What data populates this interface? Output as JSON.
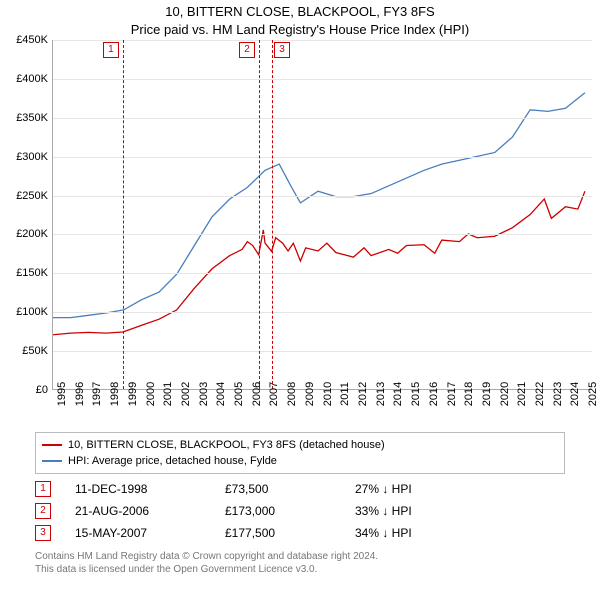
{
  "title": "10, BITTERN CLOSE, BLACKPOOL, FY3 8FS",
  "subtitle": "Price paid vs. HM Land Registry's House Price Index (HPI)",
  "chart": {
    "type": "line",
    "x_range": [
      1995,
      2025.5
    ],
    "y_range": [
      0,
      450000
    ],
    "y_ticks": [
      0,
      50000,
      100000,
      150000,
      200000,
      250000,
      300000,
      350000,
      400000,
      450000
    ],
    "y_tick_labels": [
      "£0",
      "£50K",
      "£100K",
      "£150K",
      "£200K",
      "£250K",
      "£300K",
      "£350K",
      "£400K",
      "£450K"
    ],
    "x_ticks": [
      1995,
      1996,
      1997,
      1998,
      1999,
      2000,
      2001,
      2002,
      2003,
      2004,
      2005,
      2006,
      2007,
      2008,
      2009,
      2010,
      2011,
      2012,
      2013,
      2014,
      2015,
      2016,
      2017,
      2018,
      2019,
      2020,
      2021,
      2022,
      2023,
      2024,
      2025
    ],
    "grid_color": "#e6e6e6",
    "axis_color": "#aaaaaa",
    "background_color": "#ffffff",
    "tick_fontsize": 11,
    "series": [
      {
        "name": "price_paid",
        "color": "#cc0000",
        "width": 1.3,
        "points": [
          [
            1995.0,
            70000
          ],
          [
            1996.0,
            72000
          ],
          [
            1997.0,
            73000
          ],
          [
            1998.0,
            72000
          ],
          [
            1998.95,
            73500
          ],
          [
            2000.0,
            82000
          ],
          [
            2001.0,
            90000
          ],
          [
            2002.0,
            102000
          ],
          [
            2003.0,
            130000
          ],
          [
            2004.0,
            155000
          ],
          [
            2005.0,
            172000
          ],
          [
            2005.7,
            180000
          ],
          [
            2006.0,
            190000
          ],
          [
            2006.3,
            185000
          ],
          [
            2006.64,
            173000
          ],
          [
            2006.9,
            205000
          ],
          [
            2007.0,
            188000
          ],
          [
            2007.37,
            177500
          ],
          [
            2007.6,
            195000
          ],
          [
            2008.0,
            188000
          ],
          [
            2008.3,
            178000
          ],
          [
            2008.6,
            188000
          ],
          [
            2009.0,
            165000
          ],
          [
            2009.3,
            182000
          ],
          [
            2010.0,
            178000
          ],
          [
            2010.5,
            188000
          ],
          [
            2011.0,
            176000
          ],
          [
            2012.0,
            170000
          ],
          [
            2012.6,
            182000
          ],
          [
            2013.0,
            172000
          ],
          [
            2014.0,
            180000
          ],
          [
            2014.5,
            175000
          ],
          [
            2015.0,
            185000
          ],
          [
            2016.0,
            186000
          ],
          [
            2016.6,
            175000
          ],
          [
            2017.0,
            192000
          ],
          [
            2018.0,
            190000
          ],
          [
            2018.5,
            200000
          ],
          [
            2019.0,
            195000
          ],
          [
            2020.0,
            197000
          ],
          [
            2021.0,
            208000
          ],
          [
            2022.0,
            225000
          ],
          [
            2022.8,
            245000
          ],
          [
            2023.2,
            220000
          ],
          [
            2024.0,
            235000
          ],
          [
            2024.7,
            232000
          ],
          [
            2025.1,
            255000
          ]
        ]
      },
      {
        "name": "hpi",
        "color": "#4a7ebb",
        "width": 1.3,
        "points": [
          [
            1995.0,
            92000
          ],
          [
            1996.0,
            92000
          ],
          [
            1997.0,
            95000
          ],
          [
            1998.0,
            98000
          ],
          [
            1999.0,
            102000
          ],
          [
            2000.0,
            115000
          ],
          [
            2001.0,
            125000
          ],
          [
            2002.0,
            148000
          ],
          [
            2003.0,
            185000
          ],
          [
            2004.0,
            222000
          ],
          [
            2005.0,
            245000
          ],
          [
            2006.0,
            260000
          ],
          [
            2007.0,
            282000
          ],
          [
            2007.8,
            290000
          ],
          [
            2008.5,
            260000
          ],
          [
            2009.0,
            240000
          ],
          [
            2010.0,
            255000
          ],
          [
            2011.0,
            248000
          ],
          [
            2012.0,
            248000
          ],
          [
            2013.0,
            252000
          ],
          [
            2014.0,
            262000
          ],
          [
            2015.0,
            272000
          ],
          [
            2016.0,
            282000
          ],
          [
            2017.0,
            290000
          ],
          [
            2018.0,
            295000
          ],
          [
            2019.0,
            300000
          ],
          [
            2020.0,
            305000
          ],
          [
            2021.0,
            325000
          ],
          [
            2022.0,
            360000
          ],
          [
            2023.0,
            358000
          ],
          [
            2024.0,
            362000
          ],
          [
            2025.1,
            382000
          ]
        ]
      }
    ],
    "markers": [
      {
        "n": "1",
        "x": 1998.95,
        "label_y_offset": -12,
        "label_x_offset": -20
      },
      {
        "n": "2",
        "x": 2006.64,
        "label_y_offset": -12,
        "label_x_offset": -20
      },
      {
        "n": "3",
        "x": 2007.37,
        "label_y_offset": -12,
        "label_x_offset": 2
      }
    ],
    "marker_color": "#cc0000"
  },
  "legend": {
    "items": [
      {
        "color": "#cc0000",
        "label": "10, BITTERN CLOSE, BLACKPOOL, FY3 8FS (detached house)"
      },
      {
        "color": "#4a7ebb",
        "label": "HPI: Average price, detached house, Fylde"
      }
    ]
  },
  "events": [
    {
      "n": "1",
      "date": "11-DEC-1998",
      "price": "£73,500",
      "diff": "27% ↓ HPI"
    },
    {
      "n": "2",
      "date": "21-AUG-2006",
      "price": "£173,000",
      "diff": "33% ↓ HPI"
    },
    {
      "n": "3",
      "date": "15-MAY-2007",
      "price": "£177,500",
      "diff": "34% ↓ HPI"
    }
  ],
  "footer": {
    "line1": "Contains HM Land Registry data © Crown copyright and database right 2024.",
    "line2": "This data is licensed under the Open Government Licence v3.0."
  }
}
